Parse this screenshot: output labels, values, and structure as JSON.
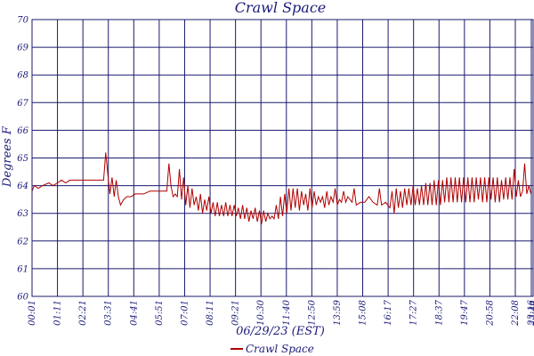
{
  "chart_data": {
    "type": "line",
    "title": "Crawl Space",
    "xlabel": "06/29/23 (EST)",
    "ylabel": "Degrees F",
    "ylim": [
      60,
      70
    ],
    "y_ticks": [
      "60",
      "61",
      "62",
      "63",
      "64",
      "65",
      "66",
      "67",
      "68",
      "69",
      "70"
    ],
    "x_ticks": [
      "00:01",
      "01:11",
      "02:21",
      "03:31",
      "04:41",
      "05:51",
      "07:01",
      "08:11",
      "09:21",
      "10:30",
      "11:40",
      "12:50",
      "13:59",
      "15:08",
      "16:17",
      "17:27",
      "18:37",
      "19:47",
      "20:58",
      "22:08",
      "23:16",
      "23:44"
    ],
    "grid": true,
    "legend_position": "bottom-center",
    "colors": {
      "series": "#b00000",
      "grid": "#1a1a6e",
      "text": "#1a1a7a"
    },
    "series": [
      {
        "name": "Crawl Space",
        "points": [
          [
            0.0,
            63.8
          ],
          [
            0.1,
            64.0
          ],
          [
            0.3,
            63.9
          ],
          [
            0.5,
            64.0
          ],
          [
            0.8,
            64.1
          ],
          [
            1.0,
            64.0
          ],
          [
            1.2,
            64.1
          ],
          [
            1.4,
            64.2
          ],
          [
            1.6,
            64.1
          ],
          [
            1.8,
            64.2
          ],
          [
            2.0,
            64.2
          ],
          [
            2.3,
            64.2
          ],
          [
            2.6,
            64.2
          ],
          [
            2.9,
            64.2
          ],
          [
            3.2,
            64.2
          ],
          [
            3.4,
            64.2
          ],
          [
            3.5,
            65.2
          ],
          [
            3.6,
            64.4
          ],
          [
            3.7,
            63.7
          ],
          [
            3.8,
            64.3
          ],
          [
            3.9,
            63.6
          ],
          [
            4.0,
            64.2
          ],
          [
            4.1,
            63.6
          ],
          [
            4.2,
            63.3
          ],
          [
            4.35,
            63.5
          ],
          [
            4.5,
            63.6
          ],
          [
            4.7,
            63.6
          ],
          [
            4.9,
            63.7
          ],
          [
            5.1,
            63.7
          ],
          [
            5.3,
            63.7
          ],
          [
            5.6,
            63.8
          ],
          [
            5.9,
            63.8
          ],
          [
            6.2,
            63.8
          ],
          [
            6.4,
            63.8
          ],
          [
            6.5,
            64.8
          ],
          [
            6.6,
            64.0
          ],
          [
            6.7,
            63.6
          ],
          [
            6.8,
            63.7
          ],
          [
            6.9,
            63.6
          ],
          [
            7.0,
            64.6
          ],
          [
            7.1,
            63.5
          ],
          [
            7.2,
            64.3
          ],
          [
            7.3,
            63.3
          ],
          [
            7.4,
            64.0
          ],
          [
            7.5,
            63.2
          ],
          [
            7.6,
            63.9
          ],
          [
            7.7,
            63.3
          ],
          [
            7.8,
            63.6
          ],
          [
            7.9,
            63.1
          ],
          [
            8.0,
            63.7
          ],
          [
            8.1,
            63.0
          ],
          [
            8.2,
            63.5
          ],
          [
            8.3,
            63.1
          ],
          [
            8.4,
            63.6
          ],
          [
            8.5,
            63.0
          ],
          [
            8.6,
            63.4
          ],
          [
            8.7,
            62.9
          ],
          [
            8.8,
            63.4
          ],
          [
            8.9,
            62.9
          ],
          [
            9.0,
            63.3
          ],
          [
            9.1,
            62.9
          ],
          [
            9.2,
            63.4
          ],
          [
            9.3,
            62.9
          ],
          [
            9.4,
            63.3
          ],
          [
            9.5,
            62.9
          ],
          [
            9.6,
            63.3
          ],
          [
            9.7,
            62.9
          ],
          [
            9.8,
            63.2
          ],
          [
            9.9,
            62.8
          ],
          [
            10.0,
            63.3
          ],
          [
            10.1,
            62.8
          ],
          [
            10.2,
            63.2
          ],
          [
            10.3,
            62.7
          ],
          [
            10.4,
            63.1
          ],
          [
            10.5,
            62.8
          ],
          [
            10.6,
            63.2
          ],
          [
            10.7,
            62.7
          ],
          [
            10.8,
            63.1
          ],
          [
            10.9,
            62.6
          ],
          [
            11.0,
            63.1
          ],
          [
            11.1,
            62.7
          ],
          [
            11.2,
            63.0
          ],
          [
            11.3,
            62.8
          ],
          [
            11.4,
            62.9
          ],
          [
            11.5,
            62.8
          ],
          [
            11.6,
            63.3
          ],
          [
            11.7,
            62.8
          ],
          [
            11.8,
            63.6
          ],
          [
            11.9,
            62.9
          ],
          [
            12.0,
            63.7
          ],
          [
            12.1,
            63.0
          ],
          [
            12.2,
            63.9
          ],
          [
            12.3,
            63.1
          ],
          [
            12.4,
            63.9
          ],
          [
            12.5,
            63.2
          ],
          [
            12.6,
            63.9
          ],
          [
            12.7,
            63.1
          ],
          [
            12.8,
            63.8
          ],
          [
            12.9,
            63.3
          ],
          [
            13.0,
            63.7
          ],
          [
            13.1,
            63.1
          ],
          [
            13.2,
            63.9
          ],
          [
            13.3,
            63.2
          ],
          [
            13.4,
            63.8
          ],
          [
            13.5,
            63.3
          ],
          [
            13.6,
            63.6
          ],
          [
            13.7,
            63.4
          ],
          [
            13.8,
            63.6
          ],
          [
            13.9,
            63.2
          ],
          [
            14.0,
            63.8
          ],
          [
            14.1,
            63.3
          ],
          [
            14.2,
            63.6
          ],
          [
            14.3,
            63.4
          ],
          [
            14.4,
            63.9
          ],
          [
            14.5,
            63.3
          ],
          [
            14.6,
            63.5
          ],
          [
            14.7,
            63.4
          ],
          [
            14.8,
            63.8
          ],
          [
            14.9,
            63.4
          ],
          [
            15.0,
            63.6
          ],
          [
            15.2,
            63.4
          ],
          [
            15.3,
            63.9
          ],
          [
            15.4,
            63.3
          ],
          [
            15.6,
            63.4
          ],
          [
            15.8,
            63.4
          ],
          [
            16.0,
            63.6
          ],
          [
            16.2,
            63.4
          ],
          [
            16.4,
            63.3
          ],
          [
            16.5,
            63.9
          ],
          [
            16.6,
            63.3
          ],
          [
            16.8,
            63.4
          ],
          [
            17.0,
            63.2
          ],
          [
            17.1,
            63.8
          ],
          [
            17.2,
            63.0
          ],
          [
            17.3,
            63.9
          ],
          [
            17.4,
            63.2
          ],
          [
            17.5,
            63.8
          ],
          [
            17.6,
            63.2
          ],
          [
            17.7,
            63.9
          ],
          [
            17.8,
            63.3
          ],
          [
            17.9,
            63.9
          ],
          [
            18.0,
            63.3
          ],
          [
            18.1,
            64.0
          ],
          [
            18.2,
            63.3
          ],
          [
            18.3,
            63.9
          ],
          [
            18.4,
            63.3
          ],
          [
            18.5,
            64.0
          ],
          [
            18.6,
            63.3
          ],
          [
            18.7,
            64.1
          ],
          [
            18.8,
            63.3
          ],
          [
            18.9,
            64.1
          ],
          [
            19.0,
            63.3
          ],
          [
            19.1,
            64.2
          ],
          [
            19.2,
            63.3
          ],
          [
            19.3,
            64.2
          ],
          [
            19.4,
            63.3
          ],
          [
            19.5,
            64.2
          ],
          [
            19.6,
            63.4
          ],
          [
            19.7,
            64.3
          ],
          [
            19.8,
            63.4
          ],
          [
            19.9,
            64.3
          ],
          [
            20.0,
            63.4
          ],
          [
            20.1,
            64.3
          ],
          [
            20.2,
            63.4
          ],
          [
            20.3,
            64.3
          ],
          [
            20.4,
            63.4
          ],
          [
            20.5,
            64.3
          ],
          [
            20.6,
            63.4
          ],
          [
            20.7,
            64.3
          ],
          [
            20.8,
            63.4
          ],
          [
            20.9,
            64.3
          ],
          [
            21.0,
            63.4
          ],
          [
            21.1,
            64.3
          ],
          [
            21.2,
            63.5
          ],
          [
            21.3,
            64.3
          ],
          [
            21.4,
            63.4
          ],
          [
            21.5,
            64.3
          ],
          [
            21.6,
            63.4
          ],
          [
            21.7,
            64.3
          ],
          [
            21.8,
            63.5
          ],
          [
            21.9,
            64.3
          ],
          [
            22.0,
            63.4
          ],
          [
            22.1,
            64.3
          ],
          [
            22.2,
            63.4
          ],
          [
            22.3,
            64.2
          ],
          [
            22.4,
            63.5
          ],
          [
            22.5,
            64.3
          ],
          [
            22.6,
            63.5
          ],
          [
            22.7,
            64.3
          ],
          [
            22.8,
            63.5
          ],
          [
            22.9,
            64.6
          ],
          [
            23.0,
            63.6
          ],
          [
            23.1,
            64.2
          ],
          [
            23.2,
            63.6
          ],
          [
            23.3,
            63.8
          ],
          [
            23.4,
            64.8
          ],
          [
            23.5,
            63.7
          ],
          [
            23.6,
            64.0
          ],
          [
            23.7,
            63.7
          ]
        ]
      }
    ]
  }
}
